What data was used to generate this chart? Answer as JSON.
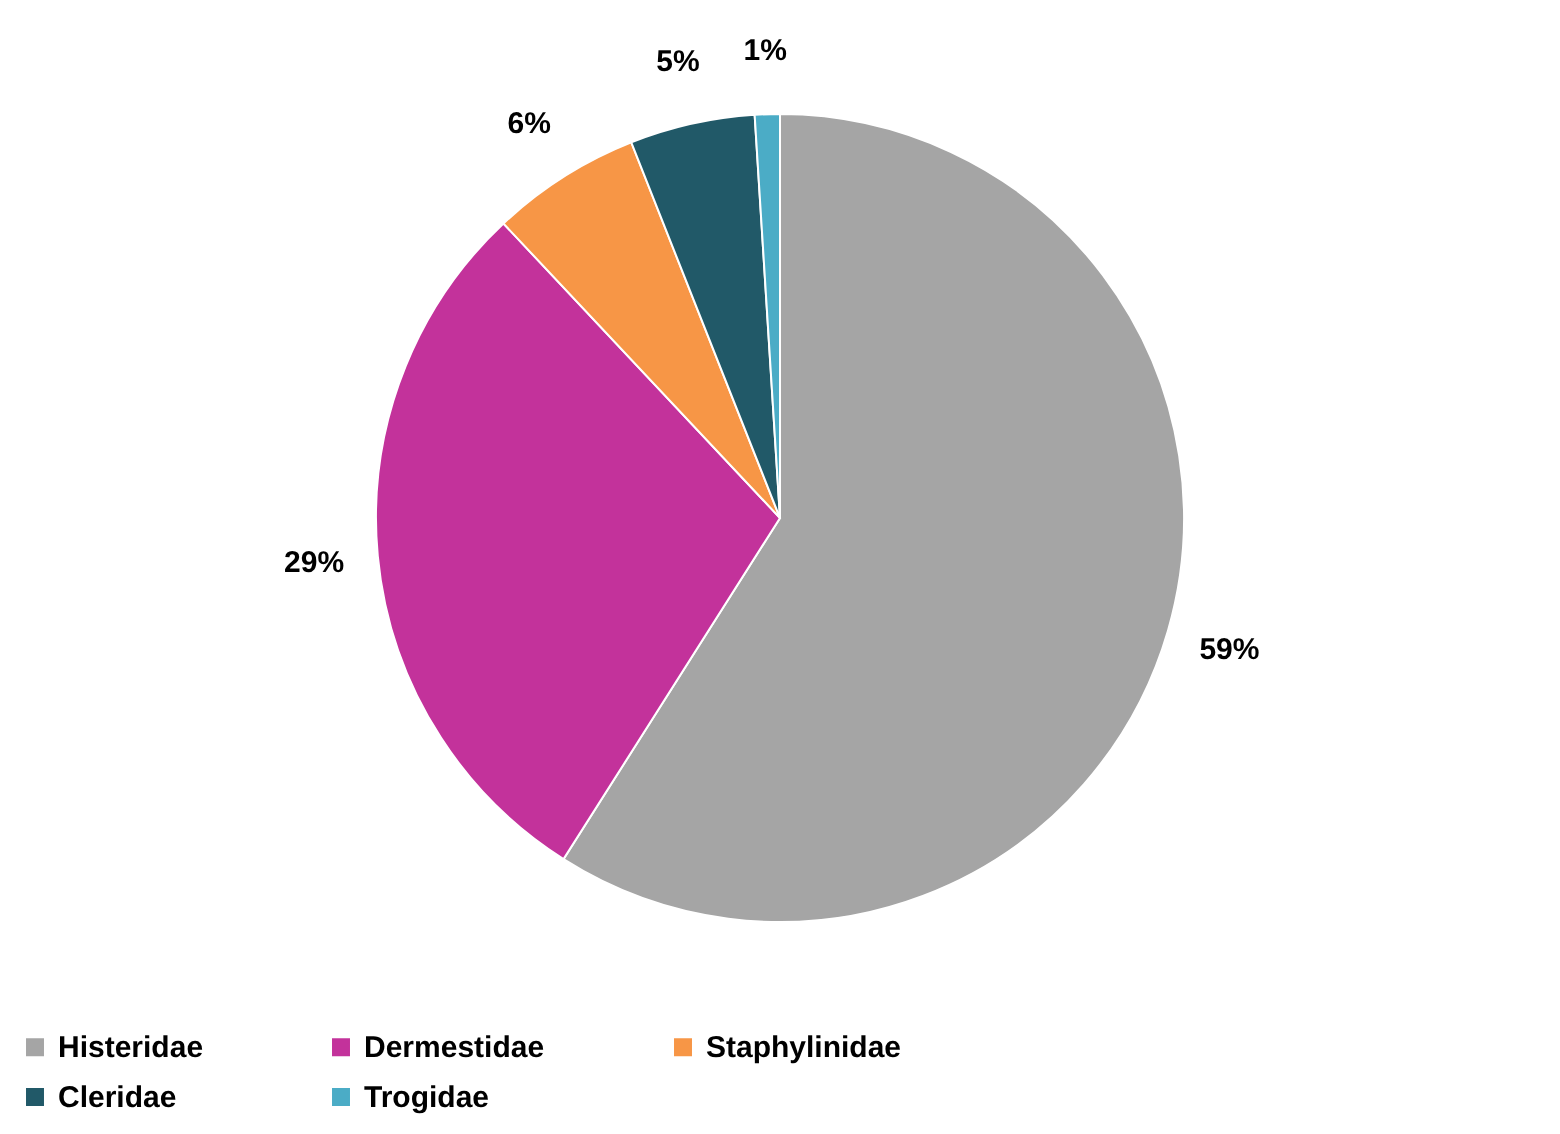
{
  "chart_data": {
    "type": "pie",
    "categories": [
      "Histeridae",
      "Dermestidae",
      "Staphylinidae",
      "Cleridae",
      "Trogidae"
    ],
    "values": [
      59,
      29,
      6,
      5,
      1
    ],
    "colors": [
      "#a5a5a5",
      "#c3329b",
      "#f79646",
      "#215968",
      "#4bacc6"
    ],
    "value_labels": [
      "59%",
      "29%",
      "6%",
      "5%",
      "1%"
    ],
    "legend": "bottom"
  }
}
